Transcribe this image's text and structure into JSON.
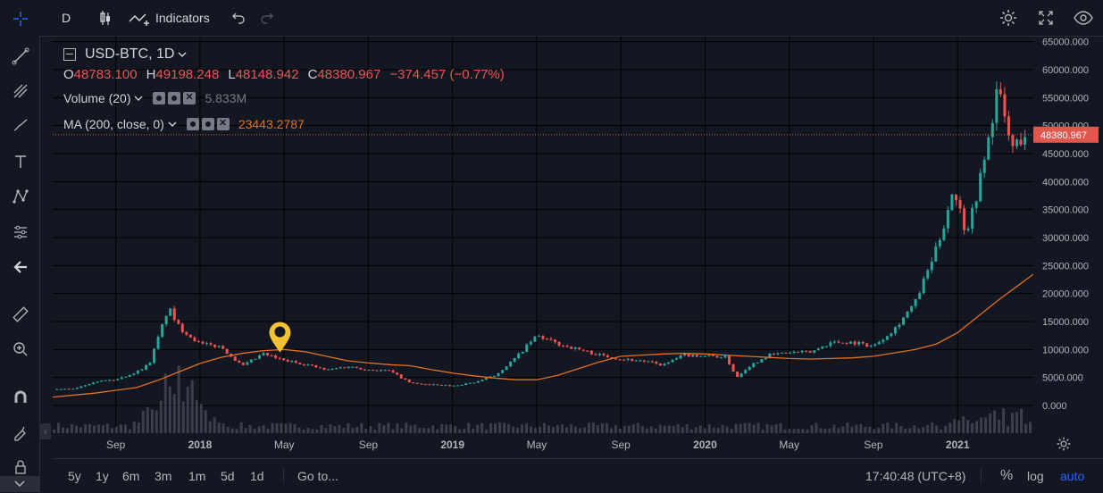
{
  "toolbar": {
    "interval": "D",
    "indicators_label": "Indicators"
  },
  "legend": {
    "symbol": "USD-BTC, 1D",
    "open_key": "O",
    "open": "48783.100",
    "high_key": "H",
    "high": "49198.248",
    "low_key": "L",
    "low": "48148.942",
    "close_key": "C",
    "close": "48380.967",
    "change": "−374.457 (−0.77%)",
    "volume_label": "Volume (20)",
    "volume_value": "5.833M",
    "ma_label": "MA (200, close, 0)",
    "ma_value": "23443.2787"
  },
  "bottom": {
    "ranges": [
      "5y",
      "1y",
      "6m",
      "3m",
      "1m",
      "5d",
      "1d"
    ],
    "goto": "Go to...",
    "clock": "17:40:48 (UTC+8)",
    "percent": "%",
    "log": "log",
    "auto": "auto"
  },
  "colors": {
    "up": "#26a69a",
    "down": "#ef5350",
    "ma": "#e5701f",
    "price_tag": "#e2574c",
    "auto": "#2962ff",
    "marker": "#f2c230"
  },
  "chart_data": {
    "type": "candlestick",
    "title": "USD-BTC, 1D",
    "y_ticks": [
      "65000.000",
      "60000.000",
      "55000.000",
      "50000.000",
      "45000.000",
      "40000.000",
      "35000.000",
      "30000.000",
      "25000.000",
      "20000.000",
      "15000.000",
      "10000.000",
      "5000.000",
      "0.000"
    ],
    "ylim": [
      0,
      65000
    ],
    "last_price_label": "48380.967",
    "last_price": 48380.967,
    "x_ticks": [
      "Sep",
      "2018",
      "May",
      "Sep",
      "2019",
      "May",
      "Sep",
      "2020",
      "May",
      "Sep",
      "2021"
    ],
    "x_tick_months": [
      3,
      7,
      11,
      15,
      19,
      23,
      27,
      31,
      35,
      39,
      43
    ],
    "xlim_months": [
      0,
      46.6
    ],
    "close_series": {
      "x_months": [
        0,
        1,
        2,
        3,
        4,
        4.6,
        5.5,
        6,
        7,
        8,
        9,
        10,
        11,
        12,
        13,
        14,
        15,
        16,
        17,
        18,
        19,
        20,
        21,
        22,
        23,
        24,
        25,
        26,
        27,
        28,
        29,
        30,
        31,
        32,
        32.5,
        33,
        34,
        35,
        36,
        37,
        38,
        39,
        40,
        41,
        42,
        42.4,
        42.8,
        43.4,
        43.8,
        44.4,
        44.9,
        45.3,
        45.6,
        46.2
      ],
      "y": [
        2800,
        3000,
        4300,
        4600,
        6000,
        7500,
        17500,
        14000,
        11000,
        10500,
        7000,
        9200,
        8000,
        7400,
        6300,
        7000,
        6400,
        6200,
        4000,
        3700,
        3500,
        4100,
        5300,
        8500,
        12500,
        11000,
        10000,
        9000,
        8300,
        8000,
        7200,
        9000,
        8900,
        8600,
        5000,
        6800,
        9000,
        9500,
        9500,
        11300,
        11300,
        10600,
        13700,
        18500,
        28000,
        33000,
        39000,
        31000,
        36000,
        46000,
        57000,
        50000,
        46000,
        48381
      ]
    },
    "ma_series": {
      "x_months": [
        0,
        2,
        4,
        5,
        6,
        7,
        8,
        9,
        10,
        11,
        12,
        13,
        14,
        15,
        16,
        17,
        18,
        19,
        20,
        21,
        22,
        23,
        24,
        25,
        26,
        27,
        28,
        29,
        30,
        31,
        32,
        33,
        34,
        35,
        36,
        37,
        38,
        39,
        40,
        41,
        42,
        43,
        44,
        45,
        46.6
      ],
      "y": [
        1500,
        2200,
        3200,
        4500,
        6000,
        7500,
        8600,
        9300,
        9800,
        10000,
        9600,
        8800,
        8000,
        7600,
        7300,
        7100,
        6400,
        5800,
        5300,
        4900,
        4600,
        4600,
        5400,
        6600,
        7800,
        8800,
        9000,
        9200,
        9300,
        9200,
        9000,
        8800,
        8600,
        8400,
        8300,
        8400,
        8500,
        8800,
        9400,
        10000,
        11000,
        13000,
        16000,
        19000,
        23443
      ]
    },
    "volume_peak_months": [
      5.2,
      5.8,
      6.5
    ],
    "marker_month": 10.8,
    "grid": true,
    "legend_position": "top-left"
  }
}
